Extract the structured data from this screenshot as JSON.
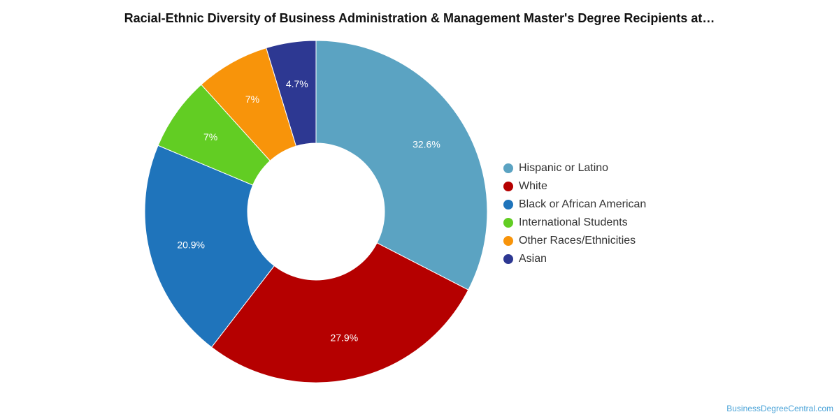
{
  "chart_data": {
    "type": "pie",
    "donut": true,
    "title": "Racial-Ethnic Diversity of Business Administration & Management Master's Degree Recipients at…",
    "slices": [
      {
        "label": "Hispanic or Latino",
        "value": 32.6,
        "display": "32.6%",
        "color": "#5ba3c2"
      },
      {
        "label": "White",
        "value": 27.9,
        "display": "27.9%",
        "color": "#b50000"
      },
      {
        "label": "Black or African American",
        "value": 20.9,
        "display": "20.9%",
        "color": "#1f74bb"
      },
      {
        "label": "International Students",
        "value": 7,
        "display": "7%",
        "color": "#62cd23"
      },
      {
        "label": "Other Races/Ethnicities",
        "value": 7,
        "display": "7%",
        "color": "#f8940a"
      },
      {
        "label": "Asian",
        "value": 4.7,
        "display": "4.7%",
        "color": "#2d3892"
      }
    ],
    "legend_position": "right"
  },
  "watermark": "BusinessDegreeCentral.com"
}
